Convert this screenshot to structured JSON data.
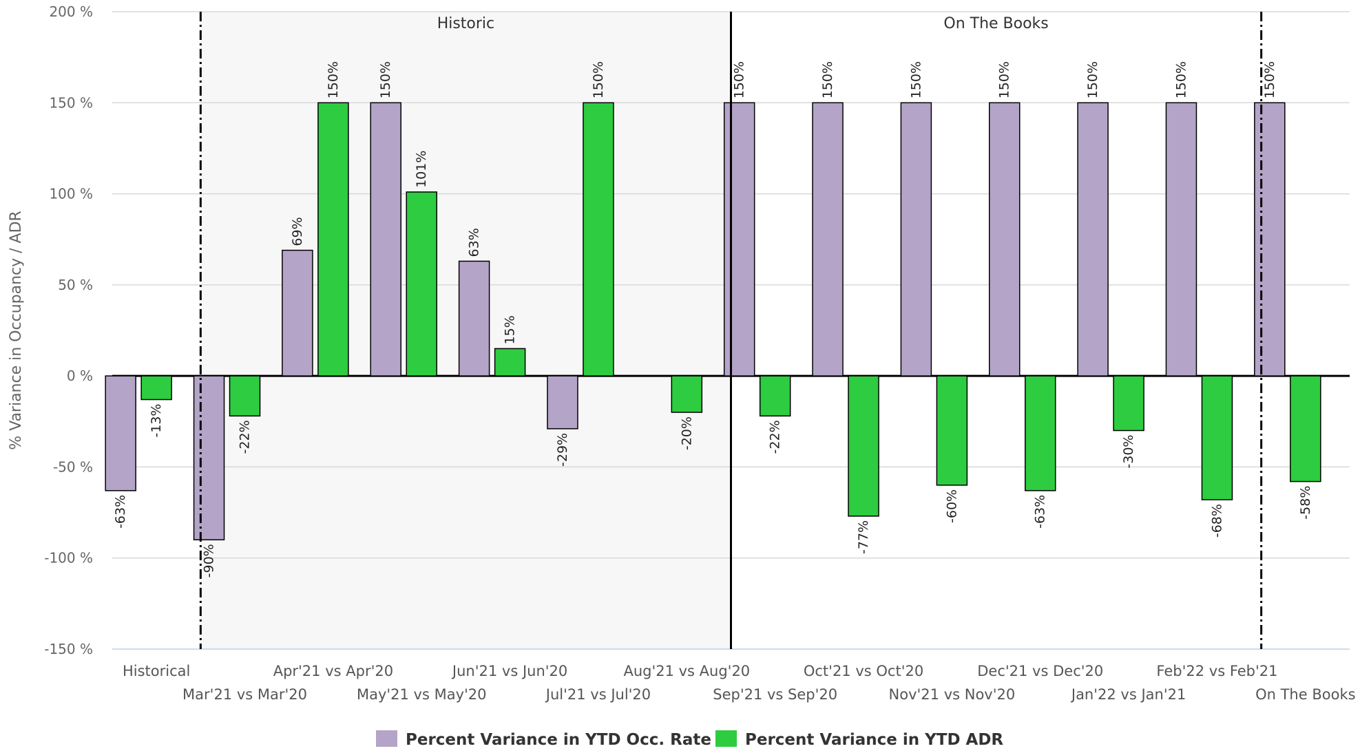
{
  "chart_data": {
    "type": "bar",
    "ylabel": "% Variance in Occupancy / ADR",
    "ylim": [
      -150,
      200
    ],
    "yticks": [
      "200 %",
      "150 %",
      "100 %",
      "50 %",
      "0 %",
      "-50 %",
      "-100 %",
      "-150 %"
    ],
    "ytick_values": [
      200,
      150,
      100,
      50,
      0,
      -50,
      -100,
      -150
    ],
    "grid": true,
    "legend_position": "bottom",
    "categories": [
      "Historical",
      "Mar'21 vs Mar'20",
      "Apr'21 vs Apr'20",
      "May'21 vs May'20",
      "Jun'21 vs Jun'20",
      "Jul'21 vs Jul'20",
      "Aug'21 vs Aug'20",
      "Sep'21 vs Sep'20",
      "Oct'21 vs Oct'20",
      "Nov'21 vs Nov'20",
      "Dec'21 vs Dec'20",
      "Jan'22 vs Jan'21",
      "Feb'22 vs Feb'21",
      "On The Books"
    ],
    "series": [
      {
        "name": "Percent Variance in YTD Occ. Rate",
        "color": "#b4a4c8",
        "values": [
          -63,
          -90,
          69,
          150,
          63,
          -29,
          null,
          150,
          150,
          150,
          150,
          150,
          150,
          150
        ],
        "labels": [
          "-63%",
          "-90%",
          "69%",
          "150%",
          "63%",
          "-29%",
          "",
          "150%",
          "150%",
          "150%",
          "150%",
          "150%",
          "150%",
          "150%"
        ]
      },
      {
        "name": "Percent Variance in YTD ADR",
        "color": "#2ecc40",
        "values": [
          -13,
          -22,
          150,
          101,
          15,
          150,
          -20,
          -22,
          -77,
          -60,
          -63,
          -30,
          -68,
          -58
        ],
        "labels": [
          "-13%",
          "-22%",
          "150%",
          "101%",
          "15%",
          "150%",
          "-20%",
          "-22%",
          "-77%",
          "-60%",
          "-63%",
          "-30%",
          "-68%",
          "-58%"
        ]
      }
    ],
    "bands": [
      {
        "label": "Historic",
        "from_category": 1,
        "to_category": 6,
        "shaded": true
      },
      {
        "label": "On The Books",
        "from_category": 7,
        "to_category": 12,
        "shaded": false
      }
    ]
  }
}
